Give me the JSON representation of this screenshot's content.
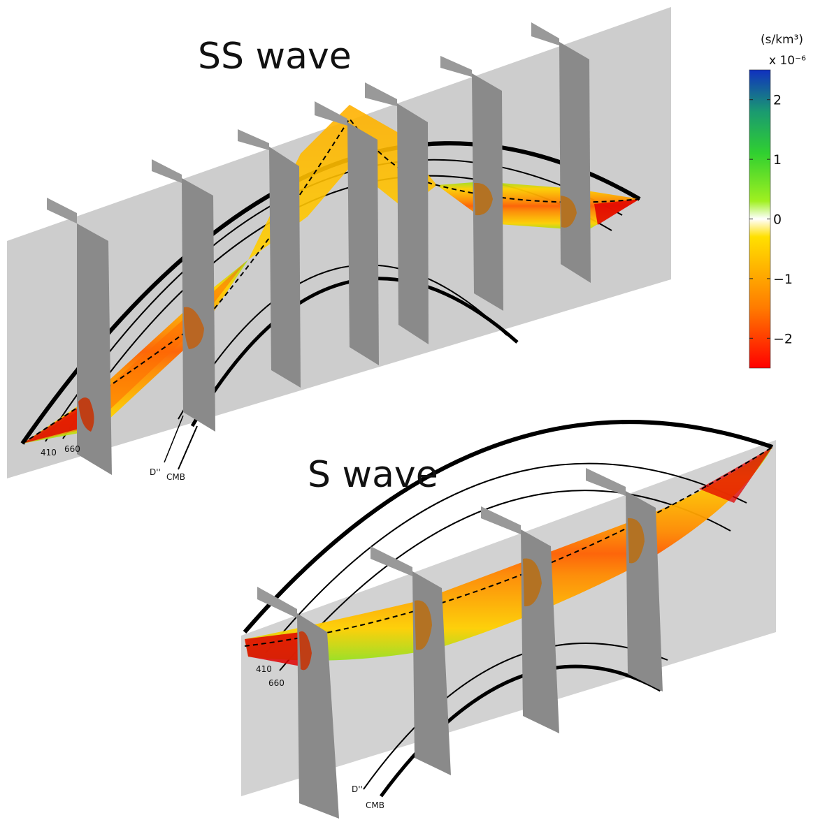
{
  "ss_panel": {
    "title": "SS wave",
    "labels": {
      "d410": "410",
      "d660": "660",
      "dpp": "D''",
      "cmb": "CMB"
    }
  },
  "s_panel": {
    "title": "S wave",
    "labels": {
      "d410": "410",
      "d660": "660",
      "dpp": "D''",
      "cmb": "CMB"
    }
  },
  "colorbar": {
    "unit": "(s/km³)",
    "scale": "x 10⁻⁶",
    "ticks": [
      "2",
      "1",
      "0",
      "−1",
      "−2"
    ],
    "range": [
      -2.5,
      2.5
    ],
    "colors": [
      "#ff0000",
      "#ff7a00",
      "#ffd000",
      "#ffffff",
      "#60e010",
      "#1aa060",
      "#1030c0"
    ]
  }
}
